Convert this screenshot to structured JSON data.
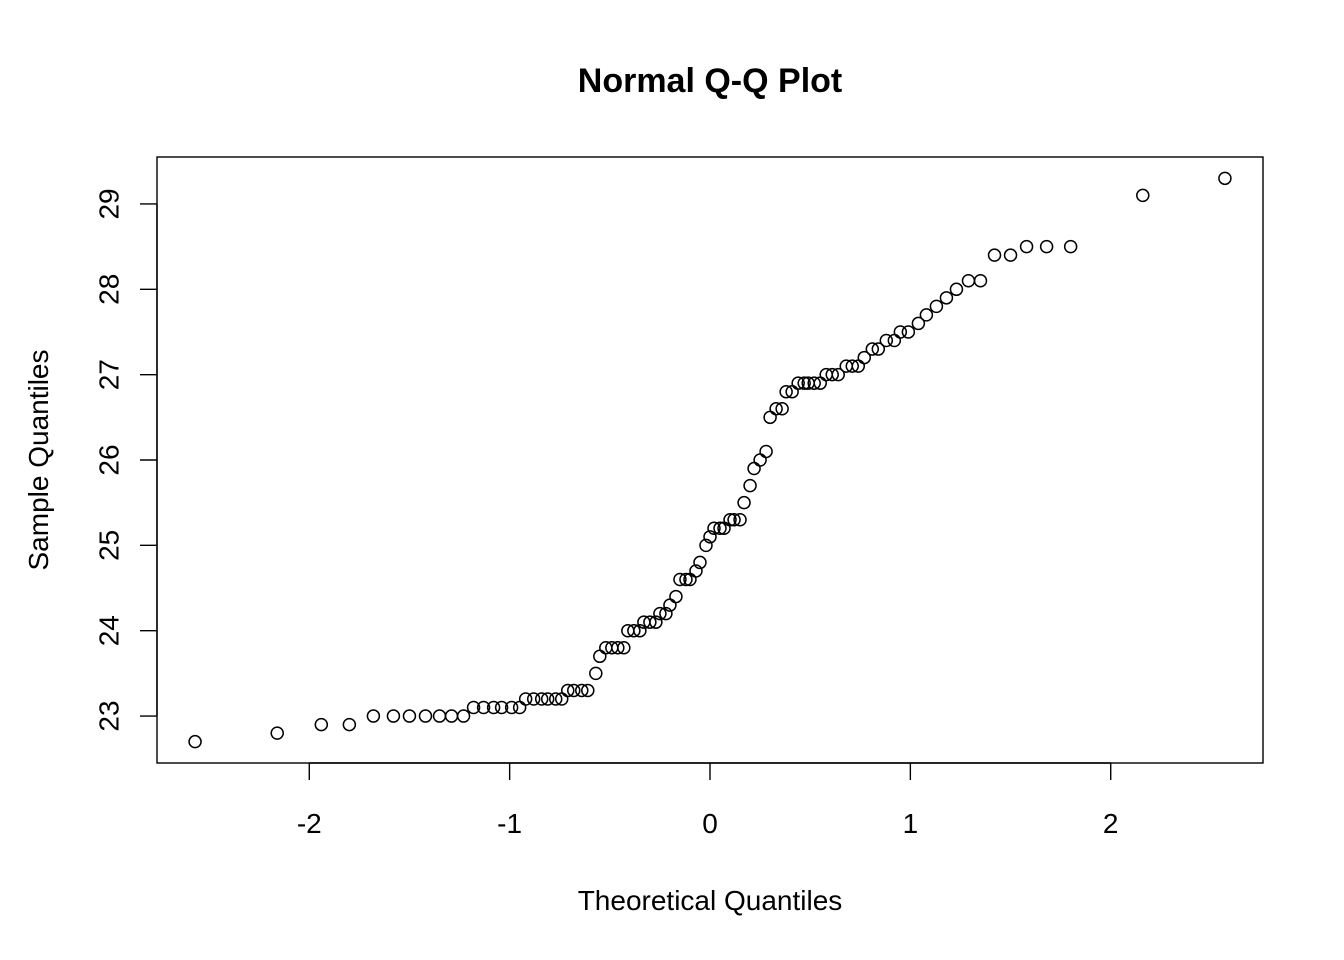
{
  "chart_data": {
    "type": "scatter",
    "title": "Normal Q-Q Plot",
    "xlabel": "Theoretical Quantiles",
    "ylabel": "Sample Quantiles",
    "xlim": [
      -2.76,
      2.76
    ],
    "ylim": [
      22.45,
      29.55
    ],
    "x_ticks": [
      -2,
      -1,
      0,
      1,
      2
    ],
    "x_tick_labels": [
      "-2",
      "-1",
      "0",
      "1",
      "2"
    ],
    "y_ticks": [
      23,
      24,
      25,
      26,
      27,
      28,
      29
    ],
    "y_tick_labels": [
      "23",
      "24",
      "25",
      "26",
      "27",
      "28",
      "29"
    ],
    "grid": false,
    "marker": "open-circle",
    "point_color": "#000000",
    "points": [
      [
        -2.57,
        22.7
      ],
      [
        -2.16,
        22.8
      ],
      [
        -1.94,
        22.9
      ],
      [
        -1.8,
        22.9
      ],
      [
        -1.68,
        23.0
      ],
      [
        -1.58,
        23.0
      ],
      [
        -1.5,
        23.0
      ],
      [
        -1.42,
        23.0
      ],
      [
        -1.35,
        23.0
      ],
      [
        -1.29,
        23.0
      ],
      [
        -1.23,
        23.0
      ],
      [
        -1.18,
        23.1
      ],
      [
        -1.13,
        23.1
      ],
      [
        -1.08,
        23.1
      ],
      [
        -1.04,
        23.1
      ],
      [
        -0.99,
        23.1
      ],
      [
        -0.95,
        23.1
      ],
      [
        -0.92,
        23.2
      ],
      [
        -0.88,
        23.2
      ],
      [
        -0.84,
        23.2
      ],
      [
        -0.81,
        23.2
      ],
      [
        -0.77,
        23.2
      ],
      [
        -0.74,
        23.2
      ],
      [
        -0.71,
        23.3
      ],
      [
        -0.68,
        23.3
      ],
      [
        -0.64,
        23.3
      ],
      [
        -0.61,
        23.3
      ],
      [
        -0.57,
        23.5
      ],
      [
        -0.55,
        23.7
      ],
      [
        -0.52,
        23.8
      ],
      [
        -0.49,
        23.8
      ],
      [
        -0.46,
        23.8
      ],
      [
        -0.43,
        23.8
      ],
      [
        -0.41,
        24.0
      ],
      [
        -0.38,
        24.0
      ],
      [
        -0.35,
        24.0
      ],
      [
        -0.33,
        24.1
      ],
      [
        -0.3,
        24.1
      ],
      [
        -0.27,
        24.1
      ],
      [
        -0.25,
        24.2
      ],
      [
        -0.22,
        24.2
      ],
      [
        -0.2,
        24.3
      ],
      [
        -0.17,
        24.4
      ],
      [
        -0.15,
        24.6
      ],
      [
        -0.12,
        24.6
      ],
      [
        -0.1,
        24.6
      ],
      [
        -0.07,
        24.7
      ],
      [
        -0.05,
        24.8
      ],
      [
        -0.02,
        25.0
      ],
      [
        0.0,
        25.1
      ],
      [
        0.02,
        25.2
      ],
      [
        0.05,
        25.2
      ],
      [
        0.07,
        25.2
      ],
      [
        0.1,
        25.3
      ],
      [
        0.12,
        25.3
      ],
      [
        0.15,
        25.3
      ],
      [
        0.17,
        25.5
      ],
      [
        0.2,
        25.7
      ],
      [
        0.22,
        25.9
      ],
      [
        0.25,
        26.0
      ],
      [
        0.28,
        26.1
      ],
      [
        0.3,
        26.5
      ],
      [
        0.33,
        26.6
      ],
      [
        0.36,
        26.6
      ],
      [
        0.38,
        26.8
      ],
      [
        0.41,
        26.8
      ],
      [
        0.44,
        26.9
      ],
      [
        0.47,
        26.9
      ],
      [
        0.49,
        26.9
      ],
      [
        0.52,
        26.9
      ],
      [
        0.55,
        26.9
      ],
      [
        0.58,
        27.0
      ],
      [
        0.61,
        27.0
      ],
      [
        0.64,
        27.0
      ],
      [
        0.68,
        27.1
      ],
      [
        0.71,
        27.1
      ],
      [
        0.74,
        27.1
      ],
      [
        0.77,
        27.2
      ],
      [
        0.81,
        27.3
      ],
      [
        0.84,
        27.3
      ],
      [
        0.88,
        27.4
      ],
      [
        0.92,
        27.4
      ],
      [
        0.95,
        27.5
      ],
      [
        0.99,
        27.5
      ],
      [
        1.04,
        27.6
      ],
      [
        1.08,
        27.7
      ],
      [
        1.13,
        27.8
      ],
      [
        1.18,
        27.9
      ],
      [
        1.23,
        28.0
      ],
      [
        1.29,
        28.1
      ],
      [
        1.35,
        28.1
      ],
      [
        1.42,
        28.4
      ],
      [
        1.5,
        28.4
      ],
      [
        1.58,
        28.5
      ],
      [
        1.68,
        28.5
      ],
      [
        1.8,
        28.5
      ],
      [
        2.16,
        29.1
      ],
      [
        2.57,
        29.3
      ]
    ]
  }
}
